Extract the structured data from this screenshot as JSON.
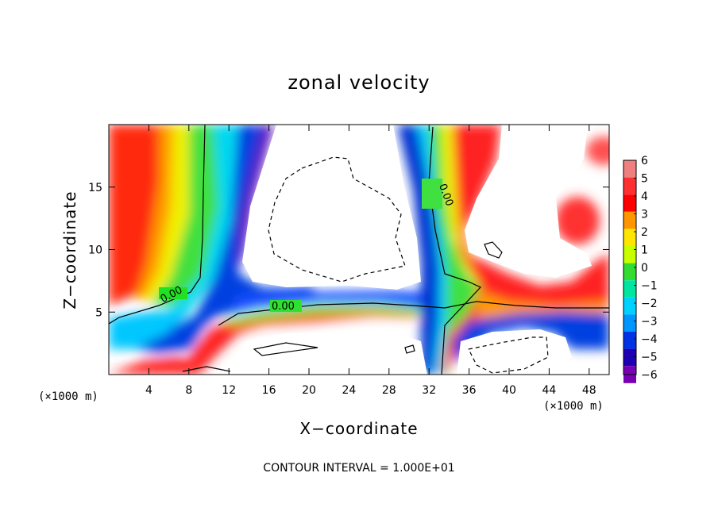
{
  "chart_data": {
    "type": "heatmap",
    "title": "zonal velocity",
    "xlabel": "X−coordinate",
    "ylabel": "Z−coordinate",
    "x_unit_label": "(×1000 m)",
    "y_unit_label": "(×1000 m)",
    "xlim": [
      0,
      50
    ],
    "ylim": [
      0,
      20
    ],
    "x_ticks": [
      4,
      8,
      12,
      16,
      20,
      24,
      28,
      32,
      36,
      40,
      44,
      48
    ],
    "y_ticks": [
      5,
      10,
      15
    ],
    "colorbar": {
      "levels": [
        6,
        5,
        4,
        3,
        2,
        1,
        0,
        -1,
        -2,
        -3,
        -4,
        -5,
        -6
      ],
      "labels": [
        "6",
        "5",
        "4",
        "3",
        "2",
        "1",
        "0",
        "−1",
        "−2",
        "−3",
        "−4",
        "−5",
        "−6"
      ],
      "colors": [
        "#f08080",
        "#ff3030",
        "#ff0000",
        "#ff9600",
        "#ffe600",
        "#c8ff00",
        "#32dc32",
        "#00e6a0",
        "#00d2ff",
        "#0096ff",
        "#0032e6",
        "#1e00b4",
        "#7800b4"
      ]
    },
    "contour_labels": [
      "0.00",
      "0.00",
      "0.00"
    ],
    "footer": "CONTOUR INTERVAL = 1.000E+01",
    "field_features": [
      {
        "x": 1.5,
        "z": 15,
        "u": 5
      },
      {
        "x": 4.5,
        "z": 13,
        "u": 3
      },
      {
        "x": 7.5,
        "z": 13,
        "u": 1
      },
      {
        "x": 9.5,
        "z": 13,
        "u": -1
      },
      {
        "x": 12,
        "z": 11,
        "u": -4
      },
      {
        "x": 13.5,
        "z": 13,
        "u": -5
      },
      {
        "x": 10,
        "z": 4,
        "u": -4
      },
      {
        "x": 5,
        "z": 4,
        "u": -1
      },
      {
        "x": 22,
        "z": 6.2,
        "u": -4
      },
      {
        "x": 22,
        "z": 4.5,
        "u": 3
      },
      {
        "x": 24,
        "z": 12.5,
        "u": 9
      },
      {
        "x": 31,
        "z": 15,
        "u": -4
      },
      {
        "x": 33,
        "z": 16,
        "u": 0
      },
      {
        "x": 34.5,
        "z": 15,
        "u": 4
      },
      {
        "x": 33,
        "z": 8,
        "u": -3
      },
      {
        "x": 33,
        "z": 2,
        "u": -2
      },
      {
        "x": 38,
        "z": 7,
        "u": 2
      },
      {
        "x": 40,
        "z": 5,
        "u": 4
      },
      {
        "x": 41,
        "z": 4,
        "u": -3
      },
      {
        "x": 46.5,
        "z": 11.8,
        "u": 5
      },
      {
        "x": 48.5,
        "z": 18,
        "u": 5
      },
      {
        "x": 46,
        "z": 9,
        "u": 4
      },
      {
        "x": 42,
        "z": 2,
        "u": 9
      },
      {
        "x": 25,
        "z": 1.5,
        "u": 9
      }
    ]
  }
}
